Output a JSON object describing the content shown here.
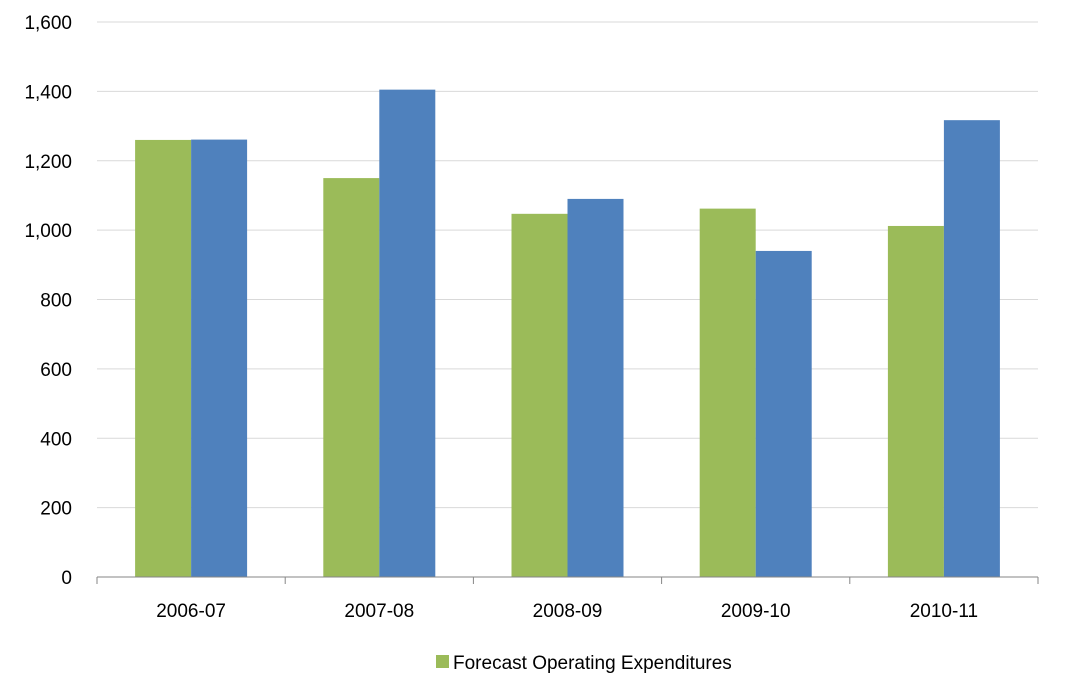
{
  "chart_data": {
    "type": "bar",
    "categories": [
      "2006-07",
      "2007-08",
      "2008-09",
      "2009-10",
      "2010-11"
    ],
    "series": [
      {
        "name": "Forecast Operating Expenditures",
        "values": [
          1260,
          1150,
          1047,
          1062,
          1012
        ],
        "color": "#9BBB59"
      },
      {
        "values": [
          1261,
          1405,
          1090,
          940,
          1317
        ],
        "color": "#4F81BD"
      }
    ],
    "y_ticks": [
      "0",
      "200",
      "400",
      "600",
      "800",
      "1,000",
      "1,200",
      "1,400",
      "1,600"
    ],
    "ylim": [
      0,
      1600
    ],
    "grid": true,
    "legend": {
      "position": "bottom",
      "entries": [
        "Forecast Operating Expenditures"
      ]
    },
    "title": "",
    "xlabel": "",
    "ylabel": ""
  }
}
